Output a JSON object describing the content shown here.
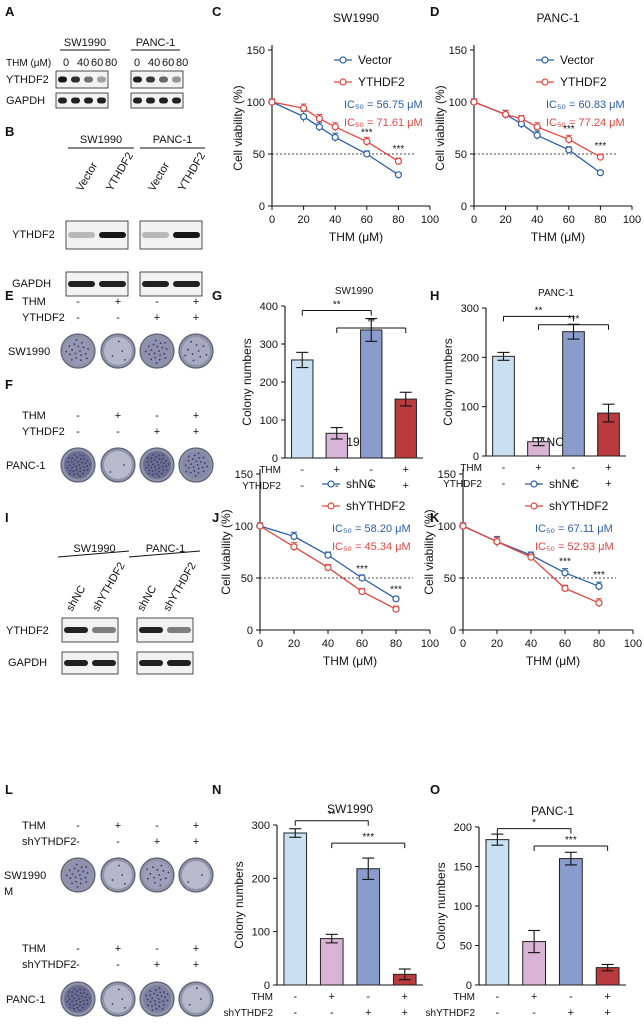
{
  "panel_letters": [
    "A",
    "B",
    "C",
    "D",
    "E",
    "F",
    "G",
    "H",
    "I",
    "J",
    "K",
    "L",
    "M",
    "N",
    "O"
  ],
  "colors": {
    "vector_blue": "#2b5ea7",
    "ythdf2_red": "#e0463f",
    "bar_light_blue": "#c9e0f2",
    "bar_pink": "#d9b3d5",
    "bar_blue": "#8a9ccb",
    "bar_red": "#b93b3d"
  },
  "blots": {
    "A": {
      "cells": [
        "SW1990",
        "PANC-1"
      ],
      "thm_label": "THM (μM)",
      "doses": [
        "0",
        "40",
        "60",
        "80"
      ],
      "proteins": [
        "YTHDF2",
        "GAPDH"
      ],
      "ythdf2_levels": [
        [
          0.95,
          0.85,
          0.55,
          0.35
        ],
        [
          0.9,
          0.8,
          0.6,
          0.4
        ]
      ]
    },
    "B": {
      "cells": [
        "SW1990",
        "PANC-1"
      ],
      "lanes": [
        "Vector",
        "YTHDF2"
      ],
      "proteins": [
        "YTHDF2",
        "GAPDH"
      ]
    },
    "I": {
      "cells": [
        "SW1990",
        "PANC-1"
      ],
      "lanes": [
        "shNC",
        "shYTHDF2"
      ],
      "proteins": [
        "YTHDF2",
        "GAPDH"
      ]
    }
  },
  "plates": {
    "E": {
      "row_labels": [
        "THM",
        "YTHDF2"
      ],
      "signs": [
        [
          "-",
          "+",
          "-",
          "+"
        ],
        [
          "-",
          "-",
          "+",
          "+"
        ]
      ],
      "cell": "SW1990",
      "density": [
        0.45,
        0.1,
        0.5,
        0.25
      ]
    },
    "F": {
      "row_labels": [
        "THM",
        "YTHDF2"
      ],
      "signs": [
        [
          "-",
          "+",
          "-",
          "+"
        ],
        [
          "-",
          "-",
          "+",
          "+"
        ]
      ],
      "cell": "PANC-1",
      "density": [
        0.9,
        0.05,
        0.9,
        0.6
      ]
    },
    "L": {
      "row_labels": [
        "THM",
        "shYTHDF2"
      ],
      "signs": [
        [
          "-",
          "+",
          "-",
          "+"
        ],
        [
          "-",
          "-",
          "+",
          "+"
        ]
      ],
      "cell": "SW1990",
      "density": [
        0.5,
        0.1,
        0.35,
        0.05
      ],
      "extra_label": "M"
    },
    "M": {
      "row_labels": [
        "THM",
        "shYTHDF2"
      ],
      "signs": [
        [
          "-",
          "+",
          "-",
          "+"
        ],
        [
          "-",
          "-",
          "+",
          "+"
        ]
      ],
      "cell": "PANC-1",
      "density": [
        0.9,
        0.1,
        0.7,
        0.08
      ]
    }
  },
  "chart_data": [
    {
      "panel": "C",
      "type": "line",
      "title": "SW1990",
      "xlabel": "THM (μM)",
      "ylabel": "Cell viability (%)",
      "xlim": [
        0,
        100
      ],
      "ylim": [
        0,
        150
      ],
      "xticks": [
        "0",
        "20",
        "40",
        "60",
        "80",
        "100"
      ],
      "yticks": [
        "0",
        "50",
        "100",
        "150"
      ],
      "reference_line": 50,
      "series": [
        {
          "name": "Vector",
          "x": [
            0,
            20,
            30,
            40,
            60,
            80
          ],
          "y": [
            100,
            86,
            76,
            66,
            50,
            30
          ],
          "err": [
            3,
            5,
            4,
            4,
            3,
            2
          ],
          "ic50": "IC₅₀ = 56.75 μM"
        },
        {
          "name": "YTHDF2",
          "x": [
            0,
            20,
            30,
            40,
            60,
            80
          ],
          "y": [
            100,
            94,
            84,
            76,
            62,
            43
          ],
          "err": [
            3,
            4,
            4,
            4,
            4,
            3
          ],
          "ic50": "IC₅₀ = 71.61 μM"
        }
      ],
      "annotations": [
        {
          "x": 60,
          "y": 68,
          "text": "***"
        },
        {
          "x": 80,
          "y": 52,
          "text": "***"
        }
      ]
    },
    {
      "panel": "D",
      "type": "line",
      "title": "PANC-1",
      "xlabel": "THM (μM)",
      "ylabel": "Cell viability (%)",
      "xlim": [
        0,
        100
      ],
      "ylim": [
        0,
        150
      ],
      "xticks": [
        "0",
        "20",
        "40",
        "60",
        "80",
        "100"
      ],
      "yticks": [
        "0",
        "50",
        "100",
        "150"
      ],
      "reference_line": 50,
      "series": [
        {
          "name": "Vector",
          "x": [
            0,
            20,
            30,
            40,
            60,
            80
          ],
          "y": [
            100,
            88,
            79,
            68,
            54,
            32
          ],
          "err": [
            3,
            4,
            4,
            4,
            3,
            2
          ],
          "ic50": "IC₅₀ = 60.83 μM"
        },
        {
          "name": "YTHDF2",
          "x": [
            0,
            20,
            30,
            40,
            60,
            80
          ],
          "y": [
            100,
            88,
            84,
            76,
            64,
            47
          ],
          "err": [
            3,
            4,
            3,
            4,
            4,
            3
          ],
          "ic50": "IC₅₀ = 77.24 μM"
        }
      ],
      "annotations": [
        {
          "x": 60,
          "y": 71,
          "text": "***"
        },
        {
          "x": 80,
          "y": 55,
          "text": "***"
        }
      ]
    },
    {
      "panel": "G",
      "type": "bar",
      "title": "SW1990",
      "ylabel": "Colony numbers",
      "ylim": [
        0,
        400
      ],
      "yticks": [
        "0",
        "100",
        "200",
        "300",
        "400"
      ],
      "values": [
        258,
        65,
        337,
        155
      ],
      "err": [
        20,
        15,
        30,
        18
      ],
      "row_labels": [
        "THM",
        "YTHDF2"
      ],
      "signs": [
        [
          "-",
          "+",
          "-",
          "+"
        ],
        [
          "-",
          "-",
          "+",
          "+"
        ]
      ],
      "brackets": [
        {
          "from": 0,
          "to": 2,
          "text": "**",
          "y": 388
        },
        {
          "from": 1,
          "to": 3,
          "text": "**",
          "y": 342
        }
      ]
    },
    {
      "panel": "H",
      "type": "bar",
      "title": "PANC-1",
      "ylabel": "Colony numbers",
      "ylim": [
        0,
        300
      ],
      "yticks": [
        "0",
        "100",
        "200",
        "300"
      ],
      "values": [
        202,
        29,
        252,
        87
      ],
      "err": [
        8,
        8,
        15,
        18
      ],
      "row_labels": [
        "THM",
        "YTHDF2"
      ],
      "signs": [
        [
          "-",
          "+",
          "-",
          "+"
        ],
        [
          "-",
          "-",
          "+",
          "+"
        ]
      ],
      "brackets": [
        {
          "from": 0,
          "to": 2,
          "text": "**",
          "y": 283
        },
        {
          "from": 1,
          "to": 3,
          "text": "***",
          "y": 266
        }
      ]
    },
    {
      "panel": "J",
      "type": "line",
      "title": "SW1990",
      "xlabel": "THM (μM)",
      "ylabel": "Cell viability (%)",
      "xlim": [
        0,
        100
      ],
      "ylim": [
        0,
        150
      ],
      "xticks": [
        "0",
        "20",
        "40",
        "60",
        "80",
        "100"
      ],
      "yticks": [
        "0",
        "50",
        "100",
        "150"
      ],
      "reference_line": 50,
      "series": [
        {
          "name": "shNC",
          "x": [
            0,
            20,
            40,
            60,
            80
          ],
          "y": [
            100,
            90,
            72,
            50,
            30
          ],
          "err": [
            3,
            4,
            3,
            3,
            2
          ],
          "ic50": "IC₅₀ = 58.20 μM"
        },
        {
          "name": "shYTHDF2",
          "x": [
            0,
            20,
            40,
            60,
            80
          ],
          "y": [
            100,
            80,
            60,
            37,
            20
          ],
          "err": [
            3,
            4,
            3,
            3,
            3
          ],
          "ic50": "IC₅₀ = 45.34 μM"
        }
      ],
      "annotations": [
        {
          "x": 60,
          "y": 56,
          "text": "***"
        },
        {
          "x": 80,
          "y": 36,
          "text": "***"
        }
      ]
    },
    {
      "panel": "K",
      "type": "line",
      "title": "PANC-1",
      "xlabel": "THM (μM)",
      "ylabel": "Cell viability (%)",
      "xlim": [
        0,
        100
      ],
      "ylim": [
        0,
        150
      ],
      "xticks": [
        "0",
        "20",
        "40",
        "60",
        "80",
        "100"
      ],
      "yticks": [
        "0",
        "50",
        "100",
        "150"
      ],
      "reference_line": 50,
      "series": [
        {
          "name": "shNC",
          "x": [
            0,
            20,
            40,
            60,
            80
          ],
          "y": [
            100,
            85,
            72,
            55,
            42
          ],
          "err": [
            3,
            5,
            3,
            4,
            4
          ],
          "ic50": "IC₅₀ = 67.11 μM"
        },
        {
          "name": "shYTHDF2",
          "x": [
            0,
            20,
            40,
            60,
            80
          ],
          "y": [
            100,
            85,
            70,
            40,
            26
          ],
          "err": [
            3,
            4,
            3,
            3,
            4
          ],
          "ic50": "IC₅₀ = 52.93 μM"
        }
      ],
      "annotations": [
        {
          "x": 60,
          "y": 63,
          "text": "***"
        },
        {
          "x": 80,
          "y": 50,
          "text": "***"
        }
      ]
    },
    {
      "panel": "N",
      "type": "bar",
      "title": "SW1990",
      "ylabel": "Colony numbers",
      "ylim": [
        0,
        300
      ],
      "yticks": [
        "0",
        "100",
        "200",
        "300"
      ],
      "values": [
        285,
        87,
        218,
        20
      ],
      "err": [
        8,
        8,
        20,
        10
      ],
      "row_labels": [
        "THM",
        "shYTHDF2"
      ],
      "signs": [
        [
          "-",
          "+",
          "-",
          "+"
        ],
        [
          "-",
          "-",
          "+",
          "+"
        ]
      ],
      "brackets": [
        {
          "from": 0,
          "to": 2,
          "text": "**",
          "y": 308
        },
        {
          "from": 1,
          "to": 3,
          "text": "***",
          "y": 266
        }
      ]
    },
    {
      "panel": "O",
      "type": "bar",
      "title": "PANC-1",
      "ylabel": "Colony numbers",
      "ylim": [
        0,
        200
      ],
      "yticks": [
        "0",
        "50",
        "100",
        "150",
        "200"
      ],
      "values": [
        184,
        55,
        160,
        22
      ],
      "err": [
        7,
        14,
        8,
        4
      ],
      "row_labels": [
        "THM",
        "shYTHDF2"
      ],
      "signs": [
        [
          "-",
          "+",
          "-",
          "+"
        ],
        [
          "-",
          "-",
          "+",
          "+"
        ]
      ],
      "brackets": [
        {
          "from": 0,
          "to": 2,
          "text": "*",
          "y": 198
        },
        {
          "from": 1,
          "to": 3,
          "text": "***",
          "y": 176
        }
      ]
    }
  ]
}
